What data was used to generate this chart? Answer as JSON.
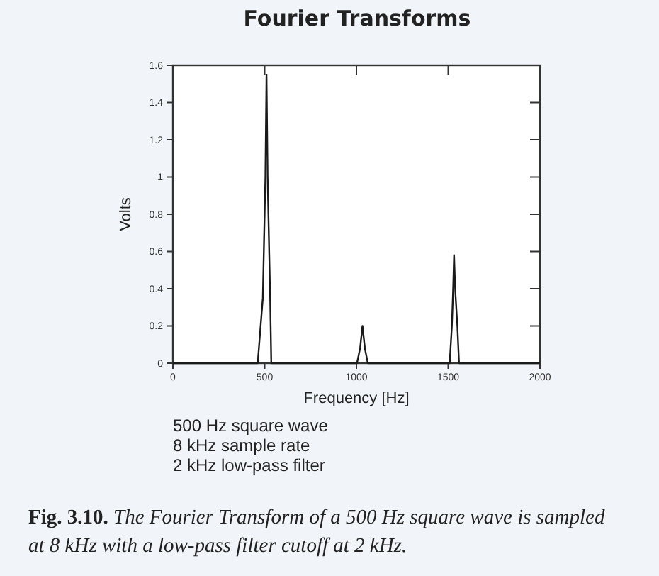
{
  "chart_data": {
    "type": "line",
    "title": "Fourier Transforms",
    "xlabel": "Frequency [Hz]",
    "ylabel": "Volts",
    "series": [
      {
        "color": "#1a1a1a",
        "x": [
          0,
          462,
          490,
          504,
          510,
          516,
          530,
          536,
          1003,
          1020,
          1033,
          1046,
          1062,
          1508,
          1520,
          1527,
          1532,
          1538,
          1550,
          1559,
          2000
        ],
        "values": [
          0,
          0,
          0.35,
          1.0,
          1.55,
          1.0,
          0.35,
          0,
          0,
          0.08,
          0.2,
          0.08,
          0,
          0,
          0.2,
          0.4,
          0.58,
          0.4,
          0.2,
          0,
          0
        ]
      }
    ],
    "xlim": [
      0,
      2000
    ],
    "xticks": [
      0,
      500,
      1000,
      1500,
      2000
    ],
    "ylim": [
      0,
      1.6
    ],
    "yticks": [
      0,
      0.2,
      0.4,
      0.6,
      0.8,
      1,
      1.2,
      1.4,
      1.6
    ],
    "grid": false,
    "marker": "none",
    "line_style": "solid",
    "annotations": [
      "500 Hz square wave",
      "8 kHz sample rate",
      "2 kHz low-pass filter",
      "Fig. 3.10. The Fourier Transform of a 500 Hz square wave is sampled at 8 kHz with a low-pass filter cutoff at 2 kHz."
    ]
  }
}
